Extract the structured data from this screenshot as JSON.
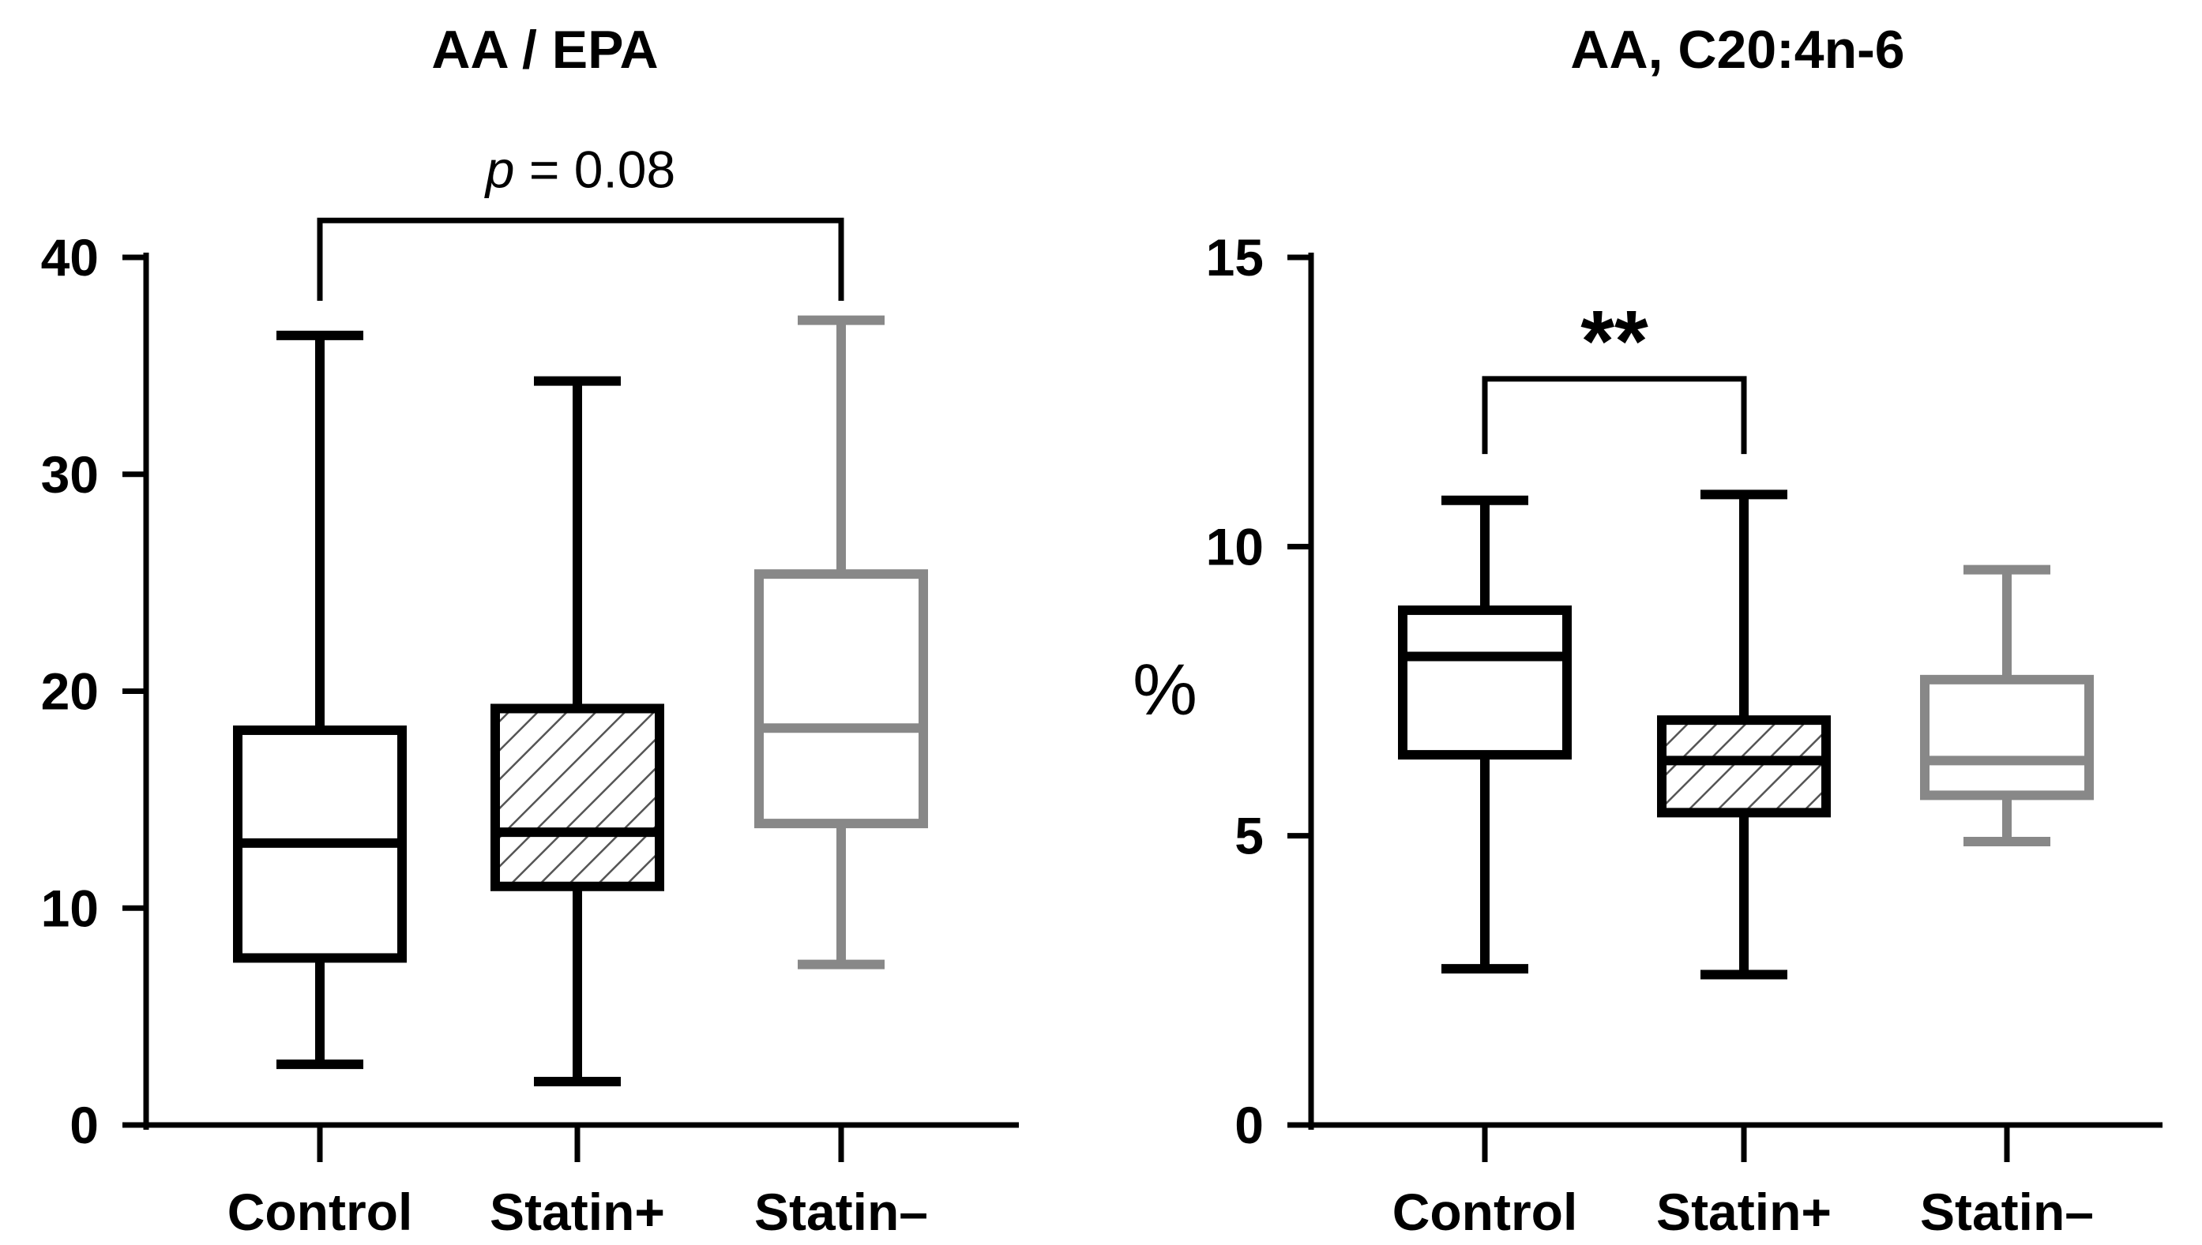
{
  "chart_data": [
    {
      "type": "box",
      "title": "AA / EPA",
      "xlabel": "",
      "ylabel": "",
      "ylim": [
        0,
        40
      ],
      "yticks": [
        0,
        10,
        20,
        30,
        40
      ],
      "categories": [
        "Control",
        "Statin+",
        "Statin–"
      ],
      "boxes": [
        {
          "name": "Control",
          "whisker_low": 2.8,
          "q1": 7.7,
          "median": 13.0,
          "q3": 18.2,
          "whisker_high": 36.4,
          "color": "#000000",
          "hatched": false
        },
        {
          "name": "Statin+",
          "whisker_low": 2.0,
          "q1": 11.0,
          "median": 13.5,
          "q3": 19.2,
          "whisker_high": 34.3,
          "color": "#000000",
          "hatched": true
        },
        {
          "name": "Statin–",
          "whisker_low": 7.4,
          "q1": 13.9,
          "median": 18.3,
          "q3": 25.4,
          "whisker_high": 37.1,
          "color": "#888888",
          "hatched": false
        }
      ],
      "annotations": [
        {
          "from": "Control",
          "to": "Statin–",
          "label_prefix": "p",
          "label_rest": " = 0.08",
          "bracket_y": 41.7,
          "drop_y": 38.0
        }
      ]
    },
    {
      "type": "box",
      "title": "AA, C20:4n-6",
      "xlabel": "",
      "ylabel": "%",
      "ylim": [
        0,
        15
      ],
      "yticks": [
        0,
        5,
        10,
        15
      ],
      "categories": [
        "Control",
        "Statin+",
        "Statin–"
      ],
      "boxes": [
        {
          "name": "Control",
          "whisker_low": 2.7,
          "q1": 6.4,
          "median": 8.1,
          "q3": 8.9,
          "whisker_high": 10.8,
          "color": "#000000",
          "hatched": false
        },
        {
          "name": "Statin+",
          "whisker_low": 2.6,
          "q1": 5.4,
          "median": 6.3,
          "q3": 7.0,
          "whisker_high": 10.9,
          "color": "#000000",
          "hatched": true
        },
        {
          "name": "Statin–",
          "whisker_low": 4.9,
          "q1": 5.7,
          "median": 6.3,
          "q3": 7.7,
          "whisker_high": 9.6,
          "color": "#888888",
          "hatched": false
        }
      ],
      "annotations": [
        {
          "from": "Control",
          "to": "Statin+",
          "label": "**",
          "bracket_y": 12.9,
          "drop_y": 11.6
        }
      ]
    }
  ]
}
